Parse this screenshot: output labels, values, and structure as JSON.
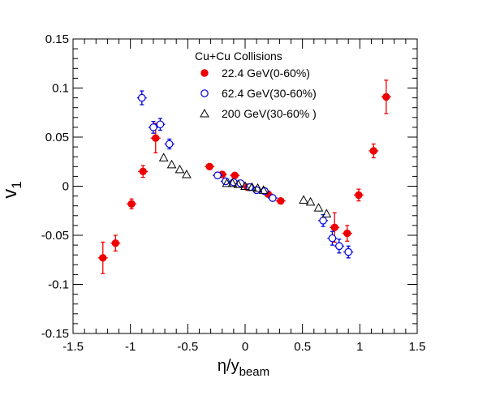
{
  "chart_data": {
    "type": "scatter",
    "xlabel": "η/y",
    "xlabel_sub": "beam",
    "ylabel": "v",
    "ylabel_sub": "1",
    "xlim": [
      -1.5,
      1.5
    ],
    "ylim": [
      -0.15,
      0.15
    ],
    "x_ticks": [
      {
        "value": -1.5,
        "label": "-1.5"
      },
      {
        "value": -1.0,
        "label": "-1"
      },
      {
        "value": -0.5,
        "label": "-0.5"
      },
      {
        "value": 0.0,
        "label": "0"
      },
      {
        "value": 0.5,
        "label": "0.5"
      },
      {
        "value": 1.0,
        "label": "1"
      },
      {
        "value": 1.5,
        "label": "1.5"
      }
    ],
    "y_ticks": [
      {
        "value": -0.15,
        "label": "-0.15"
      },
      {
        "value": -0.1,
        "label": "-0.1"
      },
      {
        "value": -0.05,
        "label": "-0.05"
      },
      {
        "value": 0.0,
        "label": "0"
      },
      {
        "value": 0.05,
        "label": "0.05"
      },
      {
        "value": 0.1,
        "label": "0.1"
      },
      {
        "value": 0.15,
        "label": "0.15"
      }
    ],
    "grid": false,
    "legend_title": "Cu+Cu Collisions",
    "legend_position": "top-center",
    "series": [
      {
        "name": "22.4 GeV(0-60%)",
        "marker": "filled-circle",
        "color": "#ee0000",
        "points": [
          {
            "x": -1.24,
            "y": -0.073,
            "err": 0.016
          },
          {
            "x": -1.13,
            "y": -0.058,
            "err": 0.008
          },
          {
            "x": -0.99,
            "y": -0.018,
            "err": 0.005
          },
          {
            "x": -0.89,
            "y": 0.015,
            "err": 0.006
          },
          {
            "x": -0.78,
            "y": 0.049,
            "err": 0.015
          },
          {
            "x": -0.31,
            "y": 0.02,
            "err": 0.002
          },
          {
            "x": -0.2,
            "y": 0.012,
            "err": 0.002
          },
          {
            "x": -0.09,
            "y": 0.011,
            "err": 0.002
          },
          {
            "x": 0.02,
            "y": -0.001,
            "err": 0.002
          },
          {
            "x": 0.2,
            "y": -0.008,
            "err": 0.002
          },
          {
            "x": 0.31,
            "y": -0.015,
            "err": 0.002
          },
          {
            "x": 0.78,
            "y": -0.042,
            "err": 0.015
          },
          {
            "x": 0.89,
            "y": -0.048,
            "err": 0.008
          },
          {
            "x": 0.99,
            "y": -0.009,
            "err": 0.006
          },
          {
            "x": 1.12,
            "y": 0.036,
            "err": 0.007
          },
          {
            "x": 1.23,
            "y": 0.091,
            "err": 0.017
          }
        ]
      },
      {
        "name": "62.4 GeV(30-60%)",
        "marker": "open-circle",
        "color": "#0000dd",
        "points": [
          {
            "x": -0.9,
            "y": 0.09,
            "err": 0.007
          },
          {
            "x": -0.8,
            "y": 0.06,
            "err": 0.006
          },
          {
            "x": -0.74,
            "y": 0.063,
            "err": 0.006
          },
          {
            "x": -0.66,
            "y": 0.043,
            "err": 0.005
          },
          {
            "x": -0.24,
            "y": 0.011,
            "err": 0.003
          },
          {
            "x": -0.17,
            "y": 0.005,
            "err": 0.003
          },
          {
            "x": -0.1,
            "y": 0.004,
            "err": 0.002
          },
          {
            "x": -0.04,
            "y": 0.003,
            "err": 0.002
          },
          {
            "x": 0.04,
            "y": -0.001,
            "err": 0.002
          },
          {
            "x": 0.1,
            "y": -0.004,
            "err": 0.002
          },
          {
            "x": 0.17,
            "y": -0.005,
            "err": 0.003
          },
          {
            "x": 0.24,
            "y": -0.012,
            "err": 0.003
          },
          {
            "x": 0.68,
            "y": -0.035,
            "err": 0.006
          },
          {
            "x": 0.76,
            "y": -0.053,
            "err": 0.007
          },
          {
            "x": 0.82,
            "y": -0.061,
            "err": 0.007
          },
          {
            "x": 0.9,
            "y": -0.067,
            "err": 0.006
          }
        ]
      },
      {
        "name": "200  GeV(30-60% )",
        "marker": "open-triangle",
        "color": "#000000",
        "points": [
          {
            "x": -0.71,
            "y": 0.029,
            "err": 0
          },
          {
            "x": -0.64,
            "y": 0.022,
            "err": 0
          },
          {
            "x": -0.57,
            "y": 0.017,
            "err": 0
          },
          {
            "x": -0.51,
            "y": 0.012,
            "err": 0
          },
          {
            "x": -0.16,
            "y": 0.003,
            "err": 0
          },
          {
            "x": -0.11,
            "y": 0.003,
            "err": 0
          },
          {
            "x": -0.06,
            "y": 0.002,
            "err": 0
          },
          {
            "x": 0.0,
            "y": 0.0,
            "err": 0
          },
          {
            "x": 0.06,
            "y": -0.001,
            "err": 0
          },
          {
            "x": 0.11,
            "y": -0.002,
            "err": 0
          },
          {
            "x": 0.16,
            "y": -0.004,
            "err": 0
          },
          {
            "x": 0.51,
            "y": -0.014,
            "err": 0
          },
          {
            "x": 0.57,
            "y": -0.016,
            "err": 0
          },
          {
            "x": 0.64,
            "y": -0.022,
            "err": 0
          },
          {
            "x": 0.71,
            "y": -0.028,
            "err": 0
          }
        ]
      }
    ]
  }
}
